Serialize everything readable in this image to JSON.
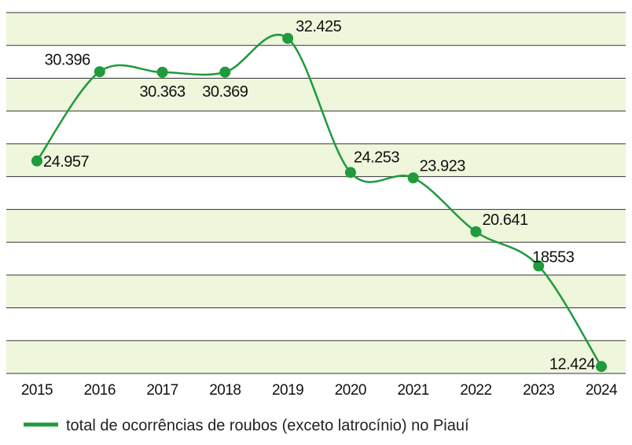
{
  "chart_data": {
    "type": "line",
    "categories": [
      "2015",
      "2016",
      "2017",
      "2018",
      "2019",
      "2020",
      "2021",
      "2022",
      "2023",
      "2024"
    ],
    "series": [
      {
        "name": "total de ocorrências de roubos (exceto latrocínio) no Piauí",
        "color": "#1f9a3c",
        "values": [
          24957,
          30396,
          30363,
          30369,
          32425,
          24253,
          23923,
          20641,
          18553,
          12424
        ],
        "value_labels": [
          "24.957",
          "30.396",
          "30.363",
          "30.369",
          "32.425",
          "24.253",
          "23.923",
          "20.641",
          "18553",
          "12.424"
        ]
      }
    ],
    "ylim": [
      12000,
      34000
    ],
    "yticks": [
      12000,
      14000,
      16000,
      18000,
      20000,
      22000,
      24000,
      26000,
      28000,
      30000,
      32000,
      34000
    ],
    "grid": true
  }
}
